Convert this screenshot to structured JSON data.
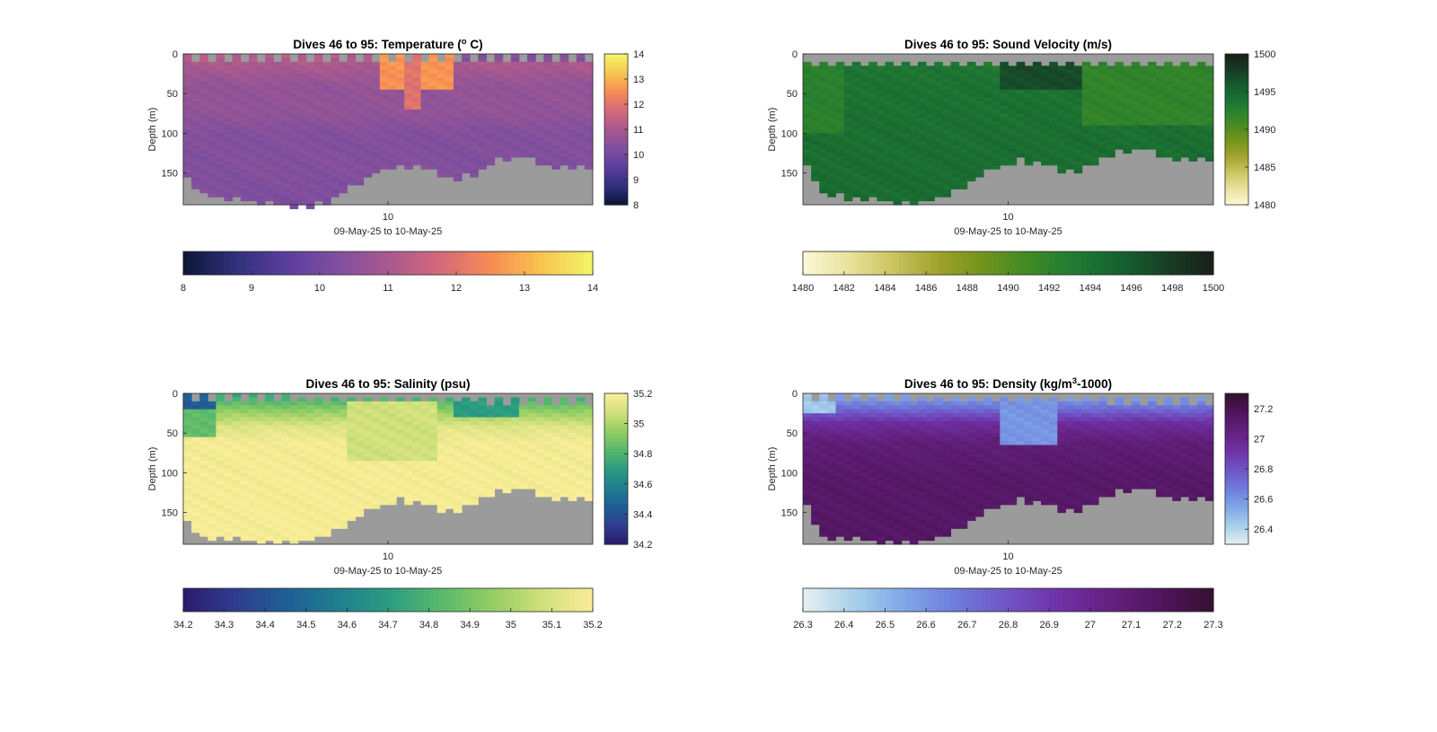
{
  "chart_data": [
    {
      "type": "heatmap",
      "title_parts": [
        "Dives 46 to 95: Temperature (",
        "o",
        " C)"
      ],
      "xlabel": "09-May-25 to 10-May-25",
      "ylabel": "Depth (m)",
      "x_ticks": [
        "10"
      ],
      "y_ticks": [
        0,
        50,
        100,
        150
      ],
      "ylim": [
        0,
        190
      ],
      "variable": "temperature",
      "vmin": 8,
      "vmax": 14,
      "colormap": [
        "#0b1536",
        "#30307a",
        "#5a3e9e",
        "#7f4f9e",
        "#a8598e",
        "#d4687a",
        "#f78b54",
        "#f7c54e",
        "#f2f56a"
      ],
      "colorbar_side": {
        "ticks": [
          "8",
          "9",
          "10",
          "11",
          "12",
          "13",
          "14"
        ]
      },
      "colorbar_bottom": {
        "ticks": [
          "8",
          "9",
          "10",
          "11",
          "12",
          "13",
          "14"
        ]
      },
      "bottom_profile": [
        {
          "dive": 46,
          "depth": 155
        },
        {
          "dive": 48,
          "depth": 172
        },
        {
          "dive": 52,
          "depth": 180
        },
        {
          "dive": 56,
          "depth": 184
        },
        {
          "dive": 60,
          "depth": 188
        },
        {
          "dive": 63,
          "depth": 183
        },
        {
          "dive": 66,
          "depth": 165
        },
        {
          "dive": 69,
          "depth": 145
        },
        {
          "dive": 72,
          "depth": 136
        },
        {
          "dive": 75,
          "depth": 140
        },
        {
          "dive": 78,
          "depth": 154
        },
        {
          "dive": 81,
          "depth": 148
        },
        {
          "dive": 84,
          "depth": 128
        },
        {
          "dive": 87,
          "depth": 126
        },
        {
          "dive": 90,
          "depth": 136
        },
        {
          "dive": 95,
          "depth": 140
        }
      ],
      "surface_gap": [
        {
          "dive": 46,
          "depth": 3
        },
        {
          "dive": 95,
          "depth": 3
        }
      ],
      "profile": [
        {
          "depth": 0,
          "value": 11.2
        },
        {
          "depth": 20,
          "value": 10.9
        },
        {
          "depth": 40,
          "value": 10.6
        },
        {
          "depth": 70,
          "value": 10.6
        },
        {
          "depth": 100,
          "value": 10.3
        },
        {
          "depth": 150,
          "value": 10.3
        },
        {
          "depth": 190,
          "value": 10.2
        }
      ],
      "anomalies": [
        {
          "dive": 70,
          "dive_to": 78,
          "depth": 0,
          "depth_to": 45,
          "value": 12.6
        },
        {
          "dive": 73,
          "dive_to": 74,
          "depth": 0,
          "depth_to": 70,
          "value": 12.0
        },
        {
          "dive": 79,
          "dive_to": 95,
          "depth": 0,
          "depth_to": 10,
          "value": 10.3
        }
      ]
    },
    {
      "type": "heatmap",
      "title_parts": [
        "Dives 46 to 95: Sound Velocity (m/s)",
        "",
        ""
      ],
      "xlabel": "09-May-25 to 10-May-25",
      "ylabel": "Depth (m)",
      "x_ticks": [
        "10"
      ],
      "y_ticks": [
        0,
        50,
        100,
        150
      ],
      "ylim": [
        0,
        190
      ],
      "variable": "sound_velocity",
      "vmin": 1480,
      "vmax": 1500,
      "colormap": [
        "#fdf9d6",
        "#e9e19c",
        "#c9c45f",
        "#9ea12a",
        "#6e931b",
        "#3d8a26",
        "#1f7a33",
        "#16602f",
        "#173f25",
        "#191f17"
      ],
      "colorbar_side": {
        "ticks": [
          "1480",
          "1485",
          "1490",
          "1495",
          "1500"
        ]
      },
      "colorbar_bottom": {
        "ticks": [
          "1480",
          "1482",
          "1484",
          "1486",
          "1488",
          "1490",
          "1492",
          "1494",
          "1496",
          "1498",
          "1500"
        ]
      },
      "bottom_profile": [
        {
          "dive": 46,
          "depth": 140
        },
        {
          "dive": 48,
          "depth": 172
        },
        {
          "dive": 52,
          "depth": 178
        },
        {
          "dive": 56,
          "depth": 181
        },
        {
          "dive": 60,
          "depth": 182
        },
        {
          "dive": 63,
          "depth": 172
        },
        {
          "dive": 66,
          "depth": 156
        },
        {
          "dive": 69,
          "depth": 138
        },
        {
          "dive": 72,
          "depth": 130
        },
        {
          "dive": 75,
          "depth": 134
        },
        {
          "dive": 78,
          "depth": 145
        },
        {
          "dive": 81,
          "depth": 136
        },
        {
          "dive": 84,
          "depth": 118
        },
        {
          "dive": 87,
          "depth": 116
        },
        {
          "dive": 90,
          "depth": 126
        },
        {
          "dive": 95,
          "depth": 130
        }
      ],
      "surface_gap": [
        {
          "dive": 46,
          "depth": 10
        },
        {
          "dive": 95,
          "depth": 10
        }
      ],
      "profile": [
        {
          "depth": 0,
          "value": 1493.5
        },
        {
          "depth": 40,
          "value": 1494.0
        },
        {
          "depth": 100,
          "value": 1494.3
        },
        {
          "depth": 190,
          "value": 1494.6
        }
      ],
      "anomalies": [
        {
          "dive": 46,
          "dive_to": 50,
          "depth": 10,
          "depth_to": 100,
          "value": 1492.5
        },
        {
          "dive": 70,
          "dive_to": 79,
          "depth": 10,
          "depth_to": 45,
          "value": 1497.0
        },
        {
          "dive": 80,
          "dive_to": 95,
          "depth": 10,
          "depth_to": 90,
          "value": 1492.0
        }
      ]
    },
    {
      "type": "heatmap",
      "title_parts": [
        "Dives 46 to 95: Salinity (psu)",
        "",
        ""
      ],
      "xlabel": "09-May-25 to 10-May-25",
      "ylabel": "Depth (m)",
      "x_ticks": [
        "10"
      ],
      "y_ticks": [
        0,
        50,
        100,
        150
      ],
      "ylim": [
        0,
        190
      ],
      "variable": "salinity",
      "vmin": 34.2,
      "vmax": 35.2,
      "colormap": [
        "#2a1a6b",
        "#2f3c8f",
        "#1f5e94",
        "#1f7e8f",
        "#2a9c80",
        "#56b86d",
        "#92cd63",
        "#cfe07a",
        "#fbed9a"
      ],
      "colorbar_side": {
        "ticks": [
          "34.2",
          "34.4",
          "34.6",
          "34.8",
          "35",
          "35.2"
        ]
      },
      "colorbar_bottom": {
        "ticks": [
          "34.2",
          "34.3",
          "34.4",
          "34.5",
          "34.6",
          "34.7",
          "34.8",
          "34.9",
          "35",
          "35.1",
          "35.2"
        ]
      },
      "bottom_profile": [
        {
          "dive": 46,
          "depth": 160
        },
        {
          "dive": 48,
          "depth": 176
        },
        {
          "dive": 52,
          "depth": 180
        },
        {
          "dive": 56,
          "depth": 183
        },
        {
          "dive": 60,
          "depth": 182
        },
        {
          "dive": 63,
          "depth": 172
        },
        {
          "dive": 66,
          "depth": 156
        },
        {
          "dive": 69,
          "depth": 138
        },
        {
          "dive": 72,
          "depth": 130
        },
        {
          "dive": 75,
          "depth": 134
        },
        {
          "dive": 78,
          "depth": 145
        },
        {
          "dive": 81,
          "depth": 136
        },
        {
          "dive": 84,
          "depth": 118
        },
        {
          "dive": 87,
          "depth": 116
        },
        {
          "dive": 90,
          "depth": 126
        },
        {
          "dive": 95,
          "depth": 130
        }
      ],
      "surface_gap": [
        {
          "dive": 46,
          "depth": 4
        },
        {
          "dive": 95,
          "depth": 8
        }
      ],
      "profile": [
        {
          "depth": 0,
          "value": 34.75
        },
        {
          "depth": 20,
          "value": 34.95
        },
        {
          "depth": 40,
          "value": 35.12
        },
        {
          "depth": 60,
          "value": 35.18
        },
        {
          "depth": 190,
          "value": 35.19
        }
      ],
      "anomalies": [
        {
          "dive": 46,
          "dive_to": 49,
          "depth": 0,
          "depth_to": 20,
          "value": 34.45
        },
        {
          "dive": 46,
          "dive_to": 49,
          "depth": 20,
          "depth_to": 55,
          "value": 34.85
        },
        {
          "dive": 66,
          "dive_to": 76,
          "depth": 10,
          "depth_to": 85,
          "value": 35.08
        },
        {
          "dive": 79,
          "dive_to": 86,
          "depth": 5,
          "depth_to": 30,
          "value": 34.7
        }
      ]
    },
    {
      "type": "heatmap",
      "title_parts": [
        "Dives 46 to 95: Density (kg/m",
        "3",
        "-1000)"
      ],
      "xlabel": "09-May-25 to 10-May-25",
      "ylabel": "Depth (m)",
      "x_ticks": [
        "10"
      ],
      "y_ticks": [
        0,
        50,
        100,
        150
      ],
      "ylim": [
        0,
        190
      ],
      "variable": "density",
      "vmin": 26.3,
      "vmax": 27.3,
      "colormap": [
        "#e6f1f2",
        "#a8d0ea",
        "#7fa6e8",
        "#6e7bdb",
        "#7054c4",
        "#6f31a6",
        "#64217f",
        "#4f155c",
        "#35102f"
      ],
      "colorbar_side": {
        "ticks": [
          "26.4",
          "26.6",
          "26.8",
          "27",
          "27.2"
        ]
      },
      "colorbar_bottom": {
        "ticks": [
          "26.3",
          "26.4",
          "26.5",
          "26.6",
          "26.7",
          "26.8",
          "26.9",
          "27",
          "27.1",
          "27.2",
          "27.3"
        ]
      },
      "bottom_profile": [
        {
          "dive": 46,
          "depth": 140
        },
        {
          "dive": 48,
          "depth": 176
        },
        {
          "dive": 52,
          "depth": 180
        },
        {
          "dive": 56,
          "depth": 182
        },
        {
          "dive": 60,
          "depth": 182
        },
        {
          "dive": 63,
          "depth": 172
        },
        {
          "dive": 66,
          "depth": 156
        },
        {
          "dive": 69,
          "depth": 138
        },
        {
          "dive": 72,
          "depth": 130
        },
        {
          "dive": 75,
          "depth": 134
        },
        {
          "dive": 78,
          "depth": 145
        },
        {
          "dive": 81,
          "depth": 136
        },
        {
          "dive": 84,
          "depth": 118
        },
        {
          "dive": 87,
          "depth": 116
        },
        {
          "dive": 90,
          "depth": 126
        },
        {
          "dive": 95,
          "depth": 130
        }
      ],
      "surface_gap": [
        {
          "dive": 46,
          "depth": 4
        },
        {
          "dive": 95,
          "depth": 8
        }
      ],
      "profile": [
        {
          "depth": 0,
          "value": 26.55
        },
        {
          "depth": 15,
          "value": 26.7
        },
        {
          "depth": 35,
          "value": 26.95
        },
        {
          "depth": 60,
          "value": 27.08
        },
        {
          "depth": 100,
          "value": 27.13
        },
        {
          "depth": 190,
          "value": 27.15
        }
      ],
      "anomalies": [
        {
          "dive": 46,
          "dive_to": 49,
          "depth": 0,
          "depth_to": 25,
          "value": 26.45
        },
        {
          "dive": 70,
          "dive_to": 76,
          "depth": 10,
          "depth_to": 65,
          "value": 26.6
        }
      ]
    }
  ]
}
